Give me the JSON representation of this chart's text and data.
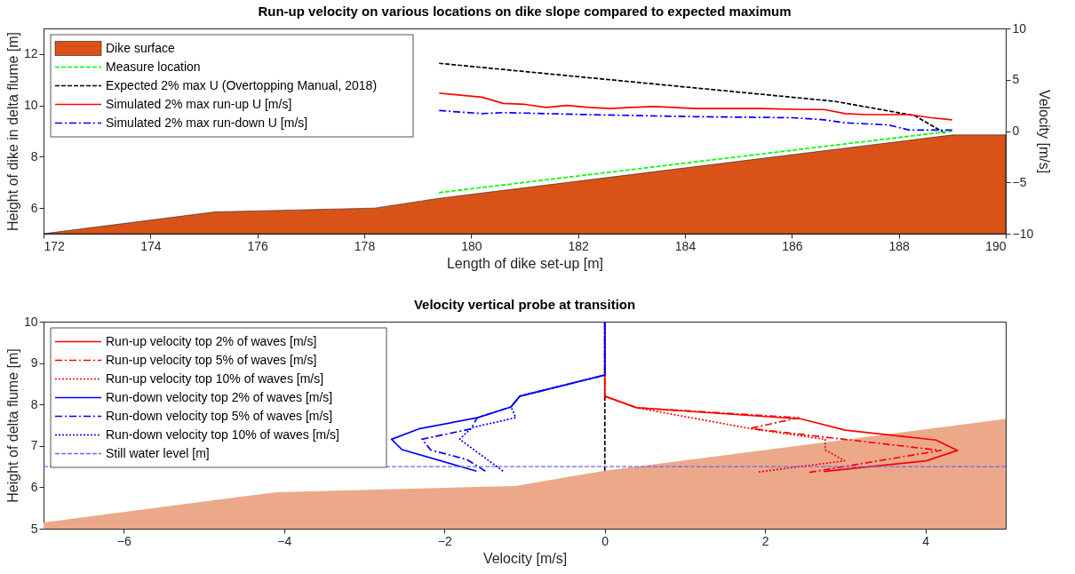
{
  "chart_data": [
    {
      "type": "line",
      "title": "Run-up velocity on various locations on dike slope compared to expected maximum",
      "xlabel": "Length of dike set-up [m]",
      "ylabel": "Height of dike in delta flume [m]",
      "y2label": "Velocity [m/s]",
      "xlim": [
        172,
        190
      ],
      "xticks": [
        172,
        174,
        176,
        178,
        180,
        182,
        184,
        186,
        188,
        190
      ],
      "ylim": [
        5,
        13
      ],
      "yticks": [
        6,
        8,
        10,
        12
      ],
      "y2lim": [
        -10,
        10
      ],
      "y2ticks": [
        -10,
        -5,
        0,
        5,
        10
      ],
      "legend": "top left",
      "grid": false,
      "series": [
        {
          "name": "Dike surface",
          "type": "area",
          "color": "#d95319",
          "x": [
            172,
            175.2,
            178.2,
            179.4,
            189,
            190
          ],
          "values": [
            5,
            5.85,
            6.0,
            6.38,
            8.85,
            8.85
          ]
        },
        {
          "name": "Measure location",
          "line_style": "dashed",
          "color": "#00ff00",
          "x": [
            179.4,
            189
          ],
          "values": [
            6.6,
            9.0
          ]
        },
        {
          "name": "Expected 2% max U (Overtopping Manual, 2018)",
          "axis": "y2",
          "line_style": "dashed",
          "color": "#000000",
          "x": [
            179.4,
            182.6,
            186.8,
            188.3,
            188.86
          ],
          "values": [
            6.6,
            5.0,
            2.9,
            1.5,
            -0.2
          ]
        },
        {
          "name": "Simulated 2% max run-up U [m/s]",
          "axis": "y2",
          "line_style": "solid",
          "color": "#ff0000",
          "x": [
            179.4,
            180.2,
            180.6,
            181.0,
            181.4,
            181.8,
            182.2,
            182.6,
            183.0,
            183.4,
            183.8,
            184.2,
            185.4,
            186.2,
            186.6,
            187.0,
            187.4,
            188.2,
            188.6,
            189.0
          ],
          "values": [
            3.7,
            3.3,
            2.7,
            2.6,
            2.3,
            2.5,
            2.3,
            2.2,
            2.3,
            2.4,
            2.3,
            2.2,
            2.2,
            2.1,
            2.1,
            1.7,
            1.6,
            1.6,
            1.3,
            1.1
          ]
        },
        {
          "name": "Simulated 2% max run-down U [m/s]",
          "axis": "y2",
          "line_style": "dashdot",
          "color": "#0000ff",
          "x": [
            179.4,
            180.2,
            180.6,
            182.2,
            184.2,
            186.0,
            186.6,
            187.0,
            187.8,
            188.2,
            189.0
          ],
          "values": [
            2.0,
            1.7,
            1.8,
            1.6,
            1.4,
            1.3,
            1.1,
            0.8,
            0.6,
            0.1,
            0.1
          ]
        }
      ]
    },
    {
      "type": "line",
      "title": "Velocity vertical probe at transition",
      "xlabel": "Velocity [m/s]",
      "ylabel": "Height of delta flume [m]",
      "xlim": [
        -7,
        5
      ],
      "xticks": [
        -6,
        -4,
        -2,
        0,
        2,
        4
      ],
      "ylim": [
        5,
        10
      ],
      "yticks": [
        5,
        6,
        7,
        8,
        9,
        10
      ],
      "legend": "top left",
      "grid": false,
      "series": [
        {
          "type": "area",
          "color": "#eba98a",
          "x": [
            -7,
            -4.1,
            -1.12,
            0,
            5
          ],
          "values": [
            5.15,
            5.88,
            6.03,
            6.4,
            7.65
          ]
        },
        {
          "line_style": "dashed",
          "color": "#000000",
          "x": [
            0,
            0
          ],
          "values": [
            6.4,
            8.2
          ]
        },
        {
          "name": "Run-up velocity top 2% of waves [m/s]",
          "line_style": "solid",
          "color": "#ff0000",
          "x": [
            0,
            0,
            0.4,
            2.45,
            3.0,
            4.13,
            4.4,
            4.01,
            2.73
          ],
          "values": [
            10,
            8.2,
            7.92,
            7.65,
            7.38,
            7.14,
            6.89,
            6.64,
            6.38
          ]
        },
        {
          "name": "Run-up velocity top 5% of waves [m/s]",
          "line_style": "dashdot",
          "color": "#ff0000",
          "x": [
            0,
            0,
            0.4,
            2.42,
            1.81,
            4.19,
            2.55
          ],
          "values": [
            10,
            8.2,
            7.92,
            7.68,
            7.42,
            6.89,
            6.36
          ]
        },
        {
          "name": "Run-up velocity top 10% of waves [m/s]",
          "line_style": "dotted",
          "color": "#ff0000",
          "x": [
            0,
            0,
            0.4,
            1.81,
            2.75,
            2.75,
            2.99,
            1.92
          ],
          "values": [
            10,
            8.2,
            7.92,
            7.42,
            7.16,
            6.9,
            6.64,
            6.37
          ]
        },
        {
          "name": "Run-down velocity top 2% of waves [m/s]",
          "line_style": "solid",
          "color": "#0000ff",
          "x": [
            0,
            0,
            -1.06,
            -1.17,
            -1.59,
            -2.32,
            -2.66,
            -2.53,
            -1.6
          ],
          "values": [
            10,
            8.71,
            8.2,
            7.94,
            7.68,
            7.41,
            7.16,
            6.91,
            6.39
          ]
        },
        {
          "name": "Run-down velocity top 5% of waves [m/s]",
          "line_style": "dashdot",
          "color": "#0000ff",
          "x": [
            0,
            0,
            -1.06,
            -1.17,
            -1.59,
            -1.67,
            -2.28,
            -2.17,
            -1.72,
            -1.49
          ],
          "values": [
            10,
            8.71,
            8.2,
            7.94,
            7.68,
            7.41,
            7.16,
            6.9,
            6.67,
            6.39
          ]
        },
        {
          "name": "Run-down velocity top 10% of waves [m/s]",
          "line_style": "dotted",
          "color": "#0000ff",
          "x": [
            0,
            0,
            -1.06,
            -1.17,
            -1.11,
            -1.66,
            -1.81,
            -1.27
          ],
          "values": [
            10,
            8.71,
            8.2,
            7.94,
            7.68,
            7.44,
            7.16,
            6.39
          ]
        }
      ],
      "ref_lines": [
        {
          "axis": "y",
          "value": 6.5,
          "label": "Still water level [m]",
          "color": "#6a6aff",
          "line_style": "dashed"
        }
      ]
    }
  ]
}
